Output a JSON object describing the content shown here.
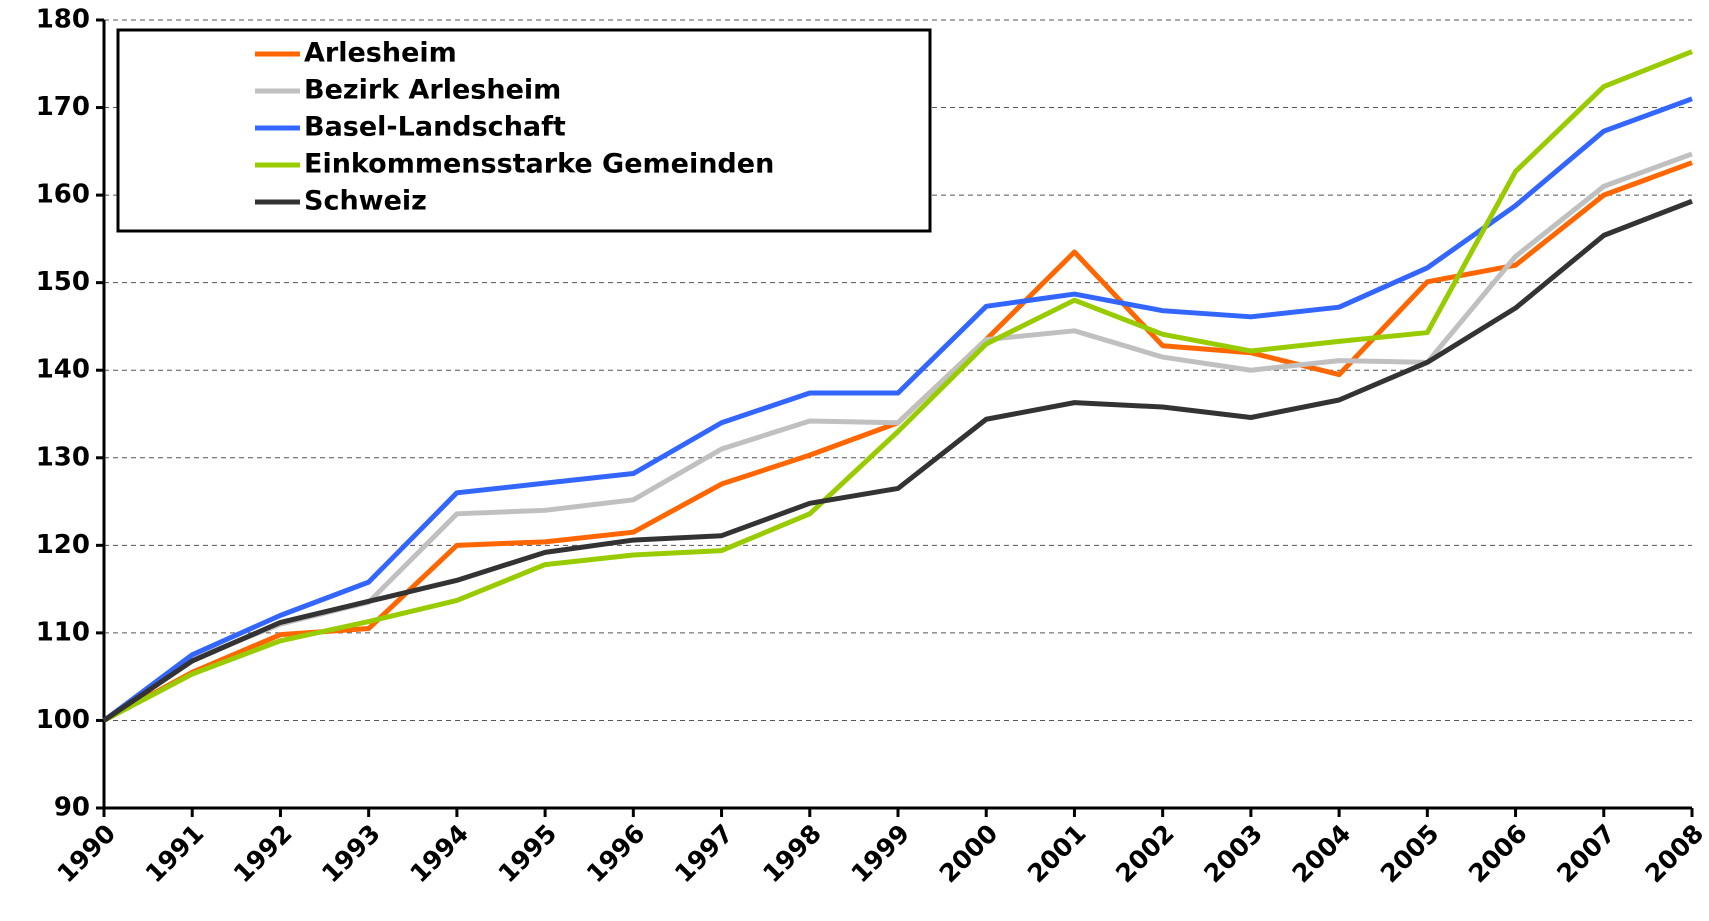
{
  "chart_data": {
    "type": "line",
    "categories": [
      "1990",
      "1991",
      "1992",
      "1993",
      "1994",
      "1995",
      "1996",
      "1997",
      "1998",
      "1999",
      "2000",
      "2001",
      "2002",
      "2003",
      "2004",
      "2005",
      "2006",
      "2007",
      "2008"
    ],
    "series": [
      {
        "name": "Arlesheim",
        "color": "#ff6600",
        "values": [
          100,
          105.5,
          109.8,
          110.5,
          120,
          120.4,
          121.5,
          127,
          130.3,
          134,
          143.5,
          153.5,
          142.8,
          142,
          139.5,
          150.1,
          152,
          160,
          163.7
        ]
      },
      {
        "name": "Bezirk Arlesheim",
        "color": "#c0c0c0",
        "values": [
          100,
          107,
          111,
          113.5,
          123.6,
          124,
          125.2,
          131,
          134.2,
          134,
          143.5,
          144.5,
          141.5,
          140,
          141.1,
          140.9,
          153,
          161,
          164.7
        ]
      },
      {
        "name": "Basel-Landschaft",
        "color": "#3366ff",
        "values": [
          100,
          107.5,
          112,
          115.8,
          126,
          127.1,
          128.2,
          134,
          137.4,
          137.4,
          147.3,
          148.7,
          146.8,
          146.1,
          147.2,
          151.7,
          158.8,
          167.3,
          171
        ]
      },
      {
        "name": "Einkommensstarke Gemeinden",
        "color": "#99cc00",
        "values": [
          100,
          105.3,
          109.1,
          111.3,
          113.7,
          117.8,
          118.9,
          119.4,
          123.6,
          133,
          143,
          148,
          144.1,
          142.2,
          143.3,
          144.3,
          162.7,
          172.4,
          176.4
        ]
      },
      {
        "name": "Schweiz",
        "color": "#333333",
        "values": [
          100,
          106.8,
          111.2,
          113.6,
          116,
          119.2,
          120.6,
          121.1,
          124.8,
          126.5,
          134.4,
          136.3,
          135.8,
          134.6,
          136.6,
          140.9,
          147.1,
          155.4,
          159.3
        ]
      }
    ],
    "ylim": [
      90,
      180
    ],
    "yticks": [
      90,
      100,
      110,
      120,
      130,
      140,
      150,
      160,
      170,
      180
    ],
    "grid": true,
    "legend": "upper left"
  }
}
